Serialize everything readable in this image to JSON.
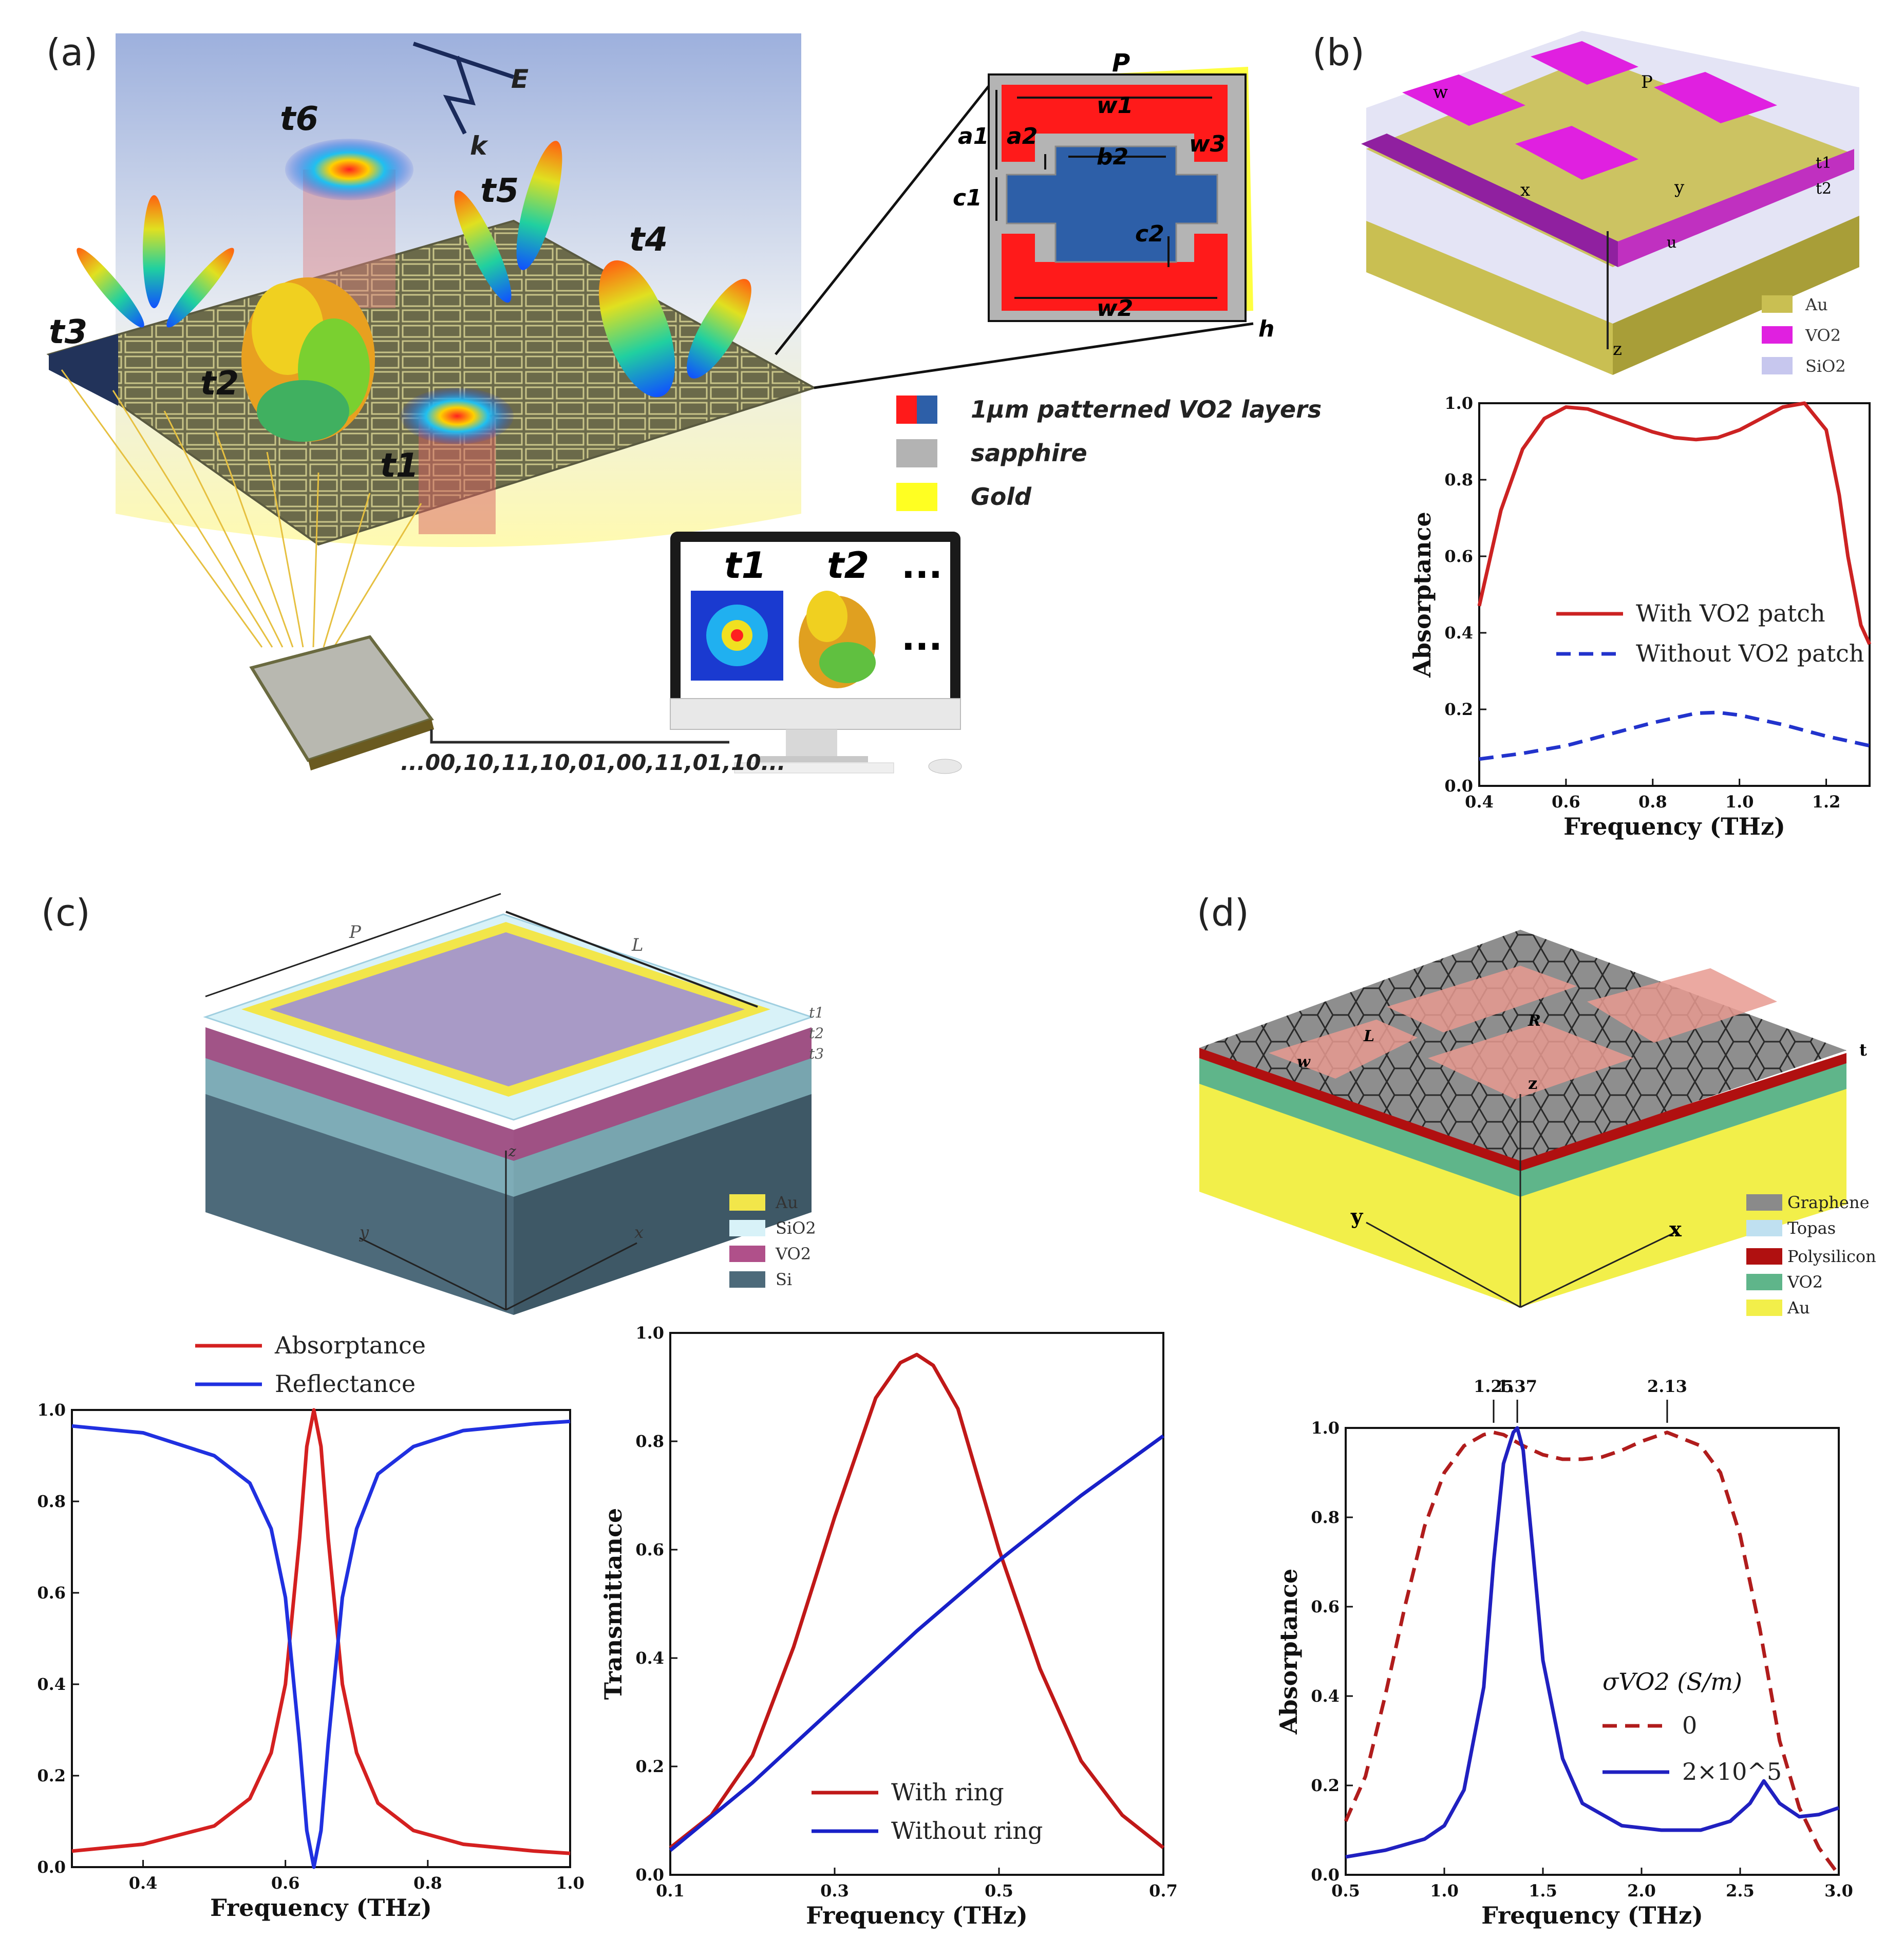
{
  "panels": {
    "a": {
      "label": "(a)",
      "field_E": "E",
      "field_k": "k",
      "time_labels": [
        "t6",
        "t5",
        "t4",
        "t3",
        "t2",
        "t1"
      ],
      "unit_cell": {
        "P": "P",
        "w1": "w1",
        "w2": "w2",
        "w3": "w3",
        "a1": "a1",
        "a2": "a2",
        "b2": "b2",
        "c1": "c1",
        "c2": "c2",
        "h": "h"
      },
      "legend": [
        {
          "text": "1μm patterned VO2 layers",
          "color": "#ff1a1a",
          "color2": "#2d5fa8"
        },
        {
          "text": "sapphire",
          "color": "#b3b3b3"
        },
        {
          "text": "Gold",
          "color": "#ffff22"
        }
      ],
      "monitor": {
        "t1": "t1",
        "t2": "t2",
        "ellipsis": "..."
      },
      "bitstream": "...00,10,11,10,01,00,11,01,10..."
    },
    "b": {
      "label": "(b)",
      "dims": {
        "w": "w",
        "P": "P",
        "t1": "t1",
        "t2": "t2",
        "x": "x",
        "y": "y",
        "z": "z",
        "u": "u"
      },
      "legend": [
        {
          "text": "Au",
          "color": "#c9bf52"
        },
        {
          "text": "VO2",
          "color": "#e020e0"
        },
        {
          "text": "SiO2",
          "color": "#c7c7ee"
        }
      ]
    },
    "c": {
      "label": "(c)",
      "dims": {
        "P": "P",
        "L": "L",
        "t1": "t1",
        "t2": "t2",
        "t3": "t3",
        "x": "x",
        "y": "y",
        "z": "z"
      },
      "legend": [
        {
          "text": "Au",
          "color": "#f2e64a"
        },
        {
          "text": "SiO2",
          "color": "#d8f2f8"
        },
        {
          "text": "VO2",
          "color": "#b0508a"
        },
        {
          "text": "Si",
          "color": "#4d6a7a"
        }
      ]
    },
    "d": {
      "label": "(d)",
      "dims": {
        "L": "L",
        "w": "w",
        "R": "R",
        "t": "t",
        "x": "x",
        "y": "y",
        "z": "z"
      },
      "legend": [
        {
          "text": "Graphene",
          "color": "#8a8a8a"
        },
        {
          "text": "Topas",
          "color": "#bfe0f0"
        },
        {
          "text": "Polysilicon",
          "color": "#b01010"
        },
        {
          "text": "VO2",
          "color": "#5fb58a"
        },
        {
          "text": "Au",
          "color": "#f2ef4a"
        }
      ]
    }
  },
  "chart_data": [
    {
      "id": "b",
      "type": "line",
      "xlabel": "Frequency (THz)",
      "ylabel": "Absorptance",
      "xlim": [
        0.4,
        1.3
      ],
      "ylim": [
        0.0,
        1.0
      ],
      "xticks": [
        0.4,
        0.6,
        0.8,
        1.0,
        1.2
      ],
      "yticks": [
        0.0,
        0.2,
        0.4,
        0.6,
        0.8,
        1.0
      ],
      "legend_position": "center",
      "series": [
        {
          "name": "With VO2 patch",
          "color": "#cc2222",
          "dash": false,
          "x": [
            0.4,
            0.45,
            0.5,
            0.55,
            0.6,
            0.65,
            0.7,
            0.75,
            0.8,
            0.85,
            0.9,
            0.95,
            1.0,
            1.05,
            1.1,
            1.15,
            1.2,
            1.23,
            1.25,
            1.28,
            1.3
          ],
          "y": [
            0.47,
            0.72,
            0.88,
            0.96,
            0.99,
            0.985,
            0.965,
            0.945,
            0.925,
            0.91,
            0.905,
            0.91,
            0.93,
            0.96,
            0.99,
            1.0,
            0.93,
            0.76,
            0.6,
            0.42,
            0.37
          ]
        },
        {
          "name": "Without VO2 patch",
          "color": "#2233cc",
          "dash": true,
          "x": [
            0.4,
            0.5,
            0.6,
            0.7,
            0.8,
            0.9,
            0.95,
            1.0,
            1.1,
            1.2,
            1.3
          ],
          "y": [
            0.07,
            0.085,
            0.105,
            0.135,
            0.165,
            0.19,
            0.192,
            0.185,
            0.16,
            0.13,
            0.105
          ]
        }
      ]
    },
    {
      "id": "c1",
      "type": "line",
      "xlabel": "Frequency (THz)",
      "ylabel": "",
      "xlim": [
        0.3,
        1.0
      ],
      "ylim": [
        0.0,
        1.0
      ],
      "xticks": [
        0.4,
        0.6,
        0.8,
        1.0
      ],
      "yticks": [
        0.0,
        0.2,
        0.4,
        0.6,
        0.8,
        1.0
      ],
      "legend_position": "top",
      "series": [
        {
          "name": "Absorptance",
          "color": "#d42020",
          "dash": false,
          "x": [
            0.3,
            0.4,
            0.5,
            0.55,
            0.58,
            0.6,
            0.62,
            0.63,
            0.64,
            0.65,
            0.66,
            0.68,
            0.7,
            0.73,
            0.78,
            0.85,
            0.95,
            1.0
          ],
          "y": [
            0.035,
            0.05,
            0.09,
            0.15,
            0.25,
            0.4,
            0.72,
            0.92,
            1.0,
            0.92,
            0.72,
            0.4,
            0.25,
            0.14,
            0.08,
            0.05,
            0.035,
            0.03
          ]
        },
        {
          "name": "Reflectance",
          "color": "#2030e0",
          "dash": false,
          "x": [
            0.3,
            0.4,
            0.5,
            0.55,
            0.58,
            0.6,
            0.62,
            0.63,
            0.64,
            0.65,
            0.66,
            0.68,
            0.7,
            0.73,
            0.78,
            0.85,
            0.95,
            1.0
          ],
          "y": [
            0.965,
            0.95,
            0.9,
            0.84,
            0.74,
            0.59,
            0.27,
            0.08,
            0.0,
            0.08,
            0.27,
            0.59,
            0.74,
            0.86,
            0.92,
            0.955,
            0.97,
            0.975
          ]
        }
      ]
    },
    {
      "id": "c2",
      "type": "line",
      "xlabel": "Frequency (THz)",
      "ylabel": "Transmittance",
      "xlim": [
        0.1,
        0.7
      ],
      "ylim": [
        0.0,
        1.0
      ],
      "xticks": [
        0.1,
        0.3,
        0.5,
        0.7
      ],
      "yticks": [
        0.0,
        0.2,
        0.4,
        0.6,
        0.8,
        1.0
      ],
      "legend_position": "bottom-center",
      "series": [
        {
          "name": "With ring",
          "color": "#c01818",
          "dash": false,
          "x": [
            0.1,
            0.15,
            0.2,
            0.25,
            0.3,
            0.35,
            0.38,
            0.4,
            0.42,
            0.45,
            0.5,
            0.55,
            0.6,
            0.65,
            0.7
          ],
          "y": [
            0.05,
            0.11,
            0.22,
            0.42,
            0.66,
            0.88,
            0.945,
            0.96,
            0.94,
            0.86,
            0.6,
            0.38,
            0.21,
            0.11,
            0.05
          ]
        },
        {
          "name": "Without ring",
          "color": "#1820c8",
          "dash": false,
          "x": [
            0.1,
            0.2,
            0.3,
            0.4,
            0.5,
            0.6,
            0.7
          ],
          "y": [
            0.045,
            0.17,
            0.31,
            0.45,
            0.58,
            0.7,
            0.81
          ]
        }
      ]
    },
    {
      "id": "d",
      "type": "line",
      "xlabel": "Frequency (THz)",
      "ylabel": "Absorptance",
      "xlim": [
        0.5,
        3.0
      ],
      "ylim": [
        0.0,
        1.0
      ],
      "xticks": [
        0.5,
        1.0,
        1.5,
        2.0,
        2.5,
        3.0
      ],
      "yticks": [
        0.0,
        0.2,
        0.4,
        0.6,
        0.8,
        1.0
      ],
      "annotations": [
        "1.25",
        "1.37",
        "2.13"
      ],
      "annotation_x": [
        1.25,
        1.37,
        2.13
      ],
      "legend_title": "σVO2 (S/m)",
      "legend_position": "bottom-right",
      "series": [
        {
          "name": "0",
          "color": "#b01c1c",
          "dash": true,
          "x": [
            0.5,
            0.6,
            0.7,
            0.8,
            0.9,
            1.0,
            1.1,
            1.2,
            1.25,
            1.3,
            1.4,
            1.5,
            1.6,
            1.7,
            1.8,
            1.9,
            2.0,
            2.13,
            2.3,
            2.4,
            2.5,
            2.6,
            2.7,
            2.8,
            2.9,
            3.0
          ],
          "y": [
            0.12,
            0.22,
            0.4,
            0.6,
            0.78,
            0.9,
            0.96,
            0.985,
            0.99,
            0.985,
            0.96,
            0.94,
            0.93,
            0.93,
            0.935,
            0.95,
            0.97,
            0.99,
            0.96,
            0.9,
            0.76,
            0.55,
            0.3,
            0.15,
            0.06,
            0.0
          ]
        },
        {
          "name": "2×10^5",
          "color": "#2020c0",
          "dash": false,
          "x": [
            0.5,
            0.7,
            0.9,
            1.0,
            1.1,
            1.2,
            1.25,
            1.3,
            1.35,
            1.37,
            1.4,
            1.45,
            1.5,
            1.6,
            1.7,
            1.9,
            2.1,
            2.3,
            2.45,
            2.55,
            2.62,
            2.7,
            2.8,
            2.9,
            3.0
          ],
          "y": [
            0.04,
            0.055,
            0.08,
            0.11,
            0.19,
            0.42,
            0.7,
            0.92,
            0.99,
            1.0,
            0.95,
            0.72,
            0.48,
            0.26,
            0.16,
            0.11,
            0.1,
            0.1,
            0.12,
            0.16,
            0.21,
            0.16,
            0.13,
            0.135,
            0.15
          ]
        }
      ]
    }
  ]
}
